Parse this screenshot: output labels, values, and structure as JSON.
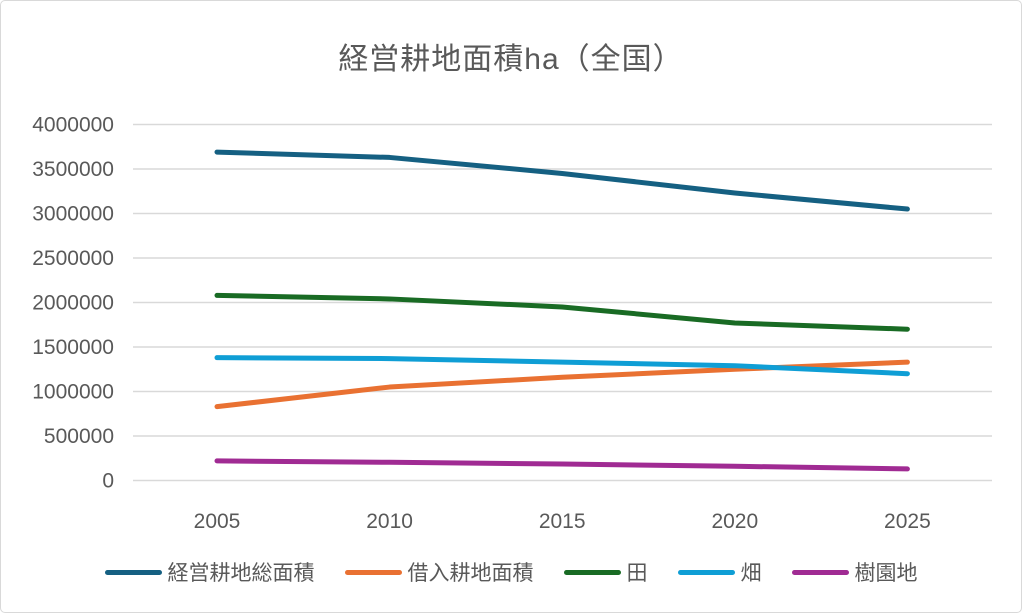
{
  "chart_data": {
    "type": "line",
    "title": "経営耕地面積ha（全国）",
    "xlabel": "",
    "ylabel": "",
    "categories": [
      "2005",
      "2010",
      "2015",
      "2020",
      "2025"
    ],
    "series": [
      {
        "name": "経営耕地総面積",
        "color": "#156082",
        "values": [
          3690000,
          3630000,
          3450000,
          3230000,
          3050000
        ]
      },
      {
        "name": "借入耕地面積",
        "color": "#e97132",
        "values": [
          830000,
          1050000,
          1160000,
          1250000,
          1330000
        ]
      },
      {
        "name": "田",
        "color": "#196b24",
        "values": [
          2080000,
          2040000,
          1950000,
          1770000,
          1700000
        ]
      },
      {
        "name": "畑",
        "color": "#0f9ed5",
        "values": [
          1380000,
          1370000,
          1330000,
          1290000,
          1200000
        ]
      },
      {
        "name": "樹園地",
        "color": "#a02b93",
        "values": [
          220000,
          205000,
          185000,
          160000,
          130000
        ]
      }
    ],
    "ylim": [
      0,
      4000000
    ],
    "y_ticks": [
      0,
      500000,
      1000000,
      1500000,
      2000000,
      2500000,
      3000000,
      3500000,
      4000000
    ],
    "grid": "horizontal",
    "legend_position": "bottom",
    "colors": {
      "text": "#595959",
      "gridline": "#d9d9d9",
      "background": "#ffffff",
      "frame_border": "#d9d9d9"
    }
  }
}
